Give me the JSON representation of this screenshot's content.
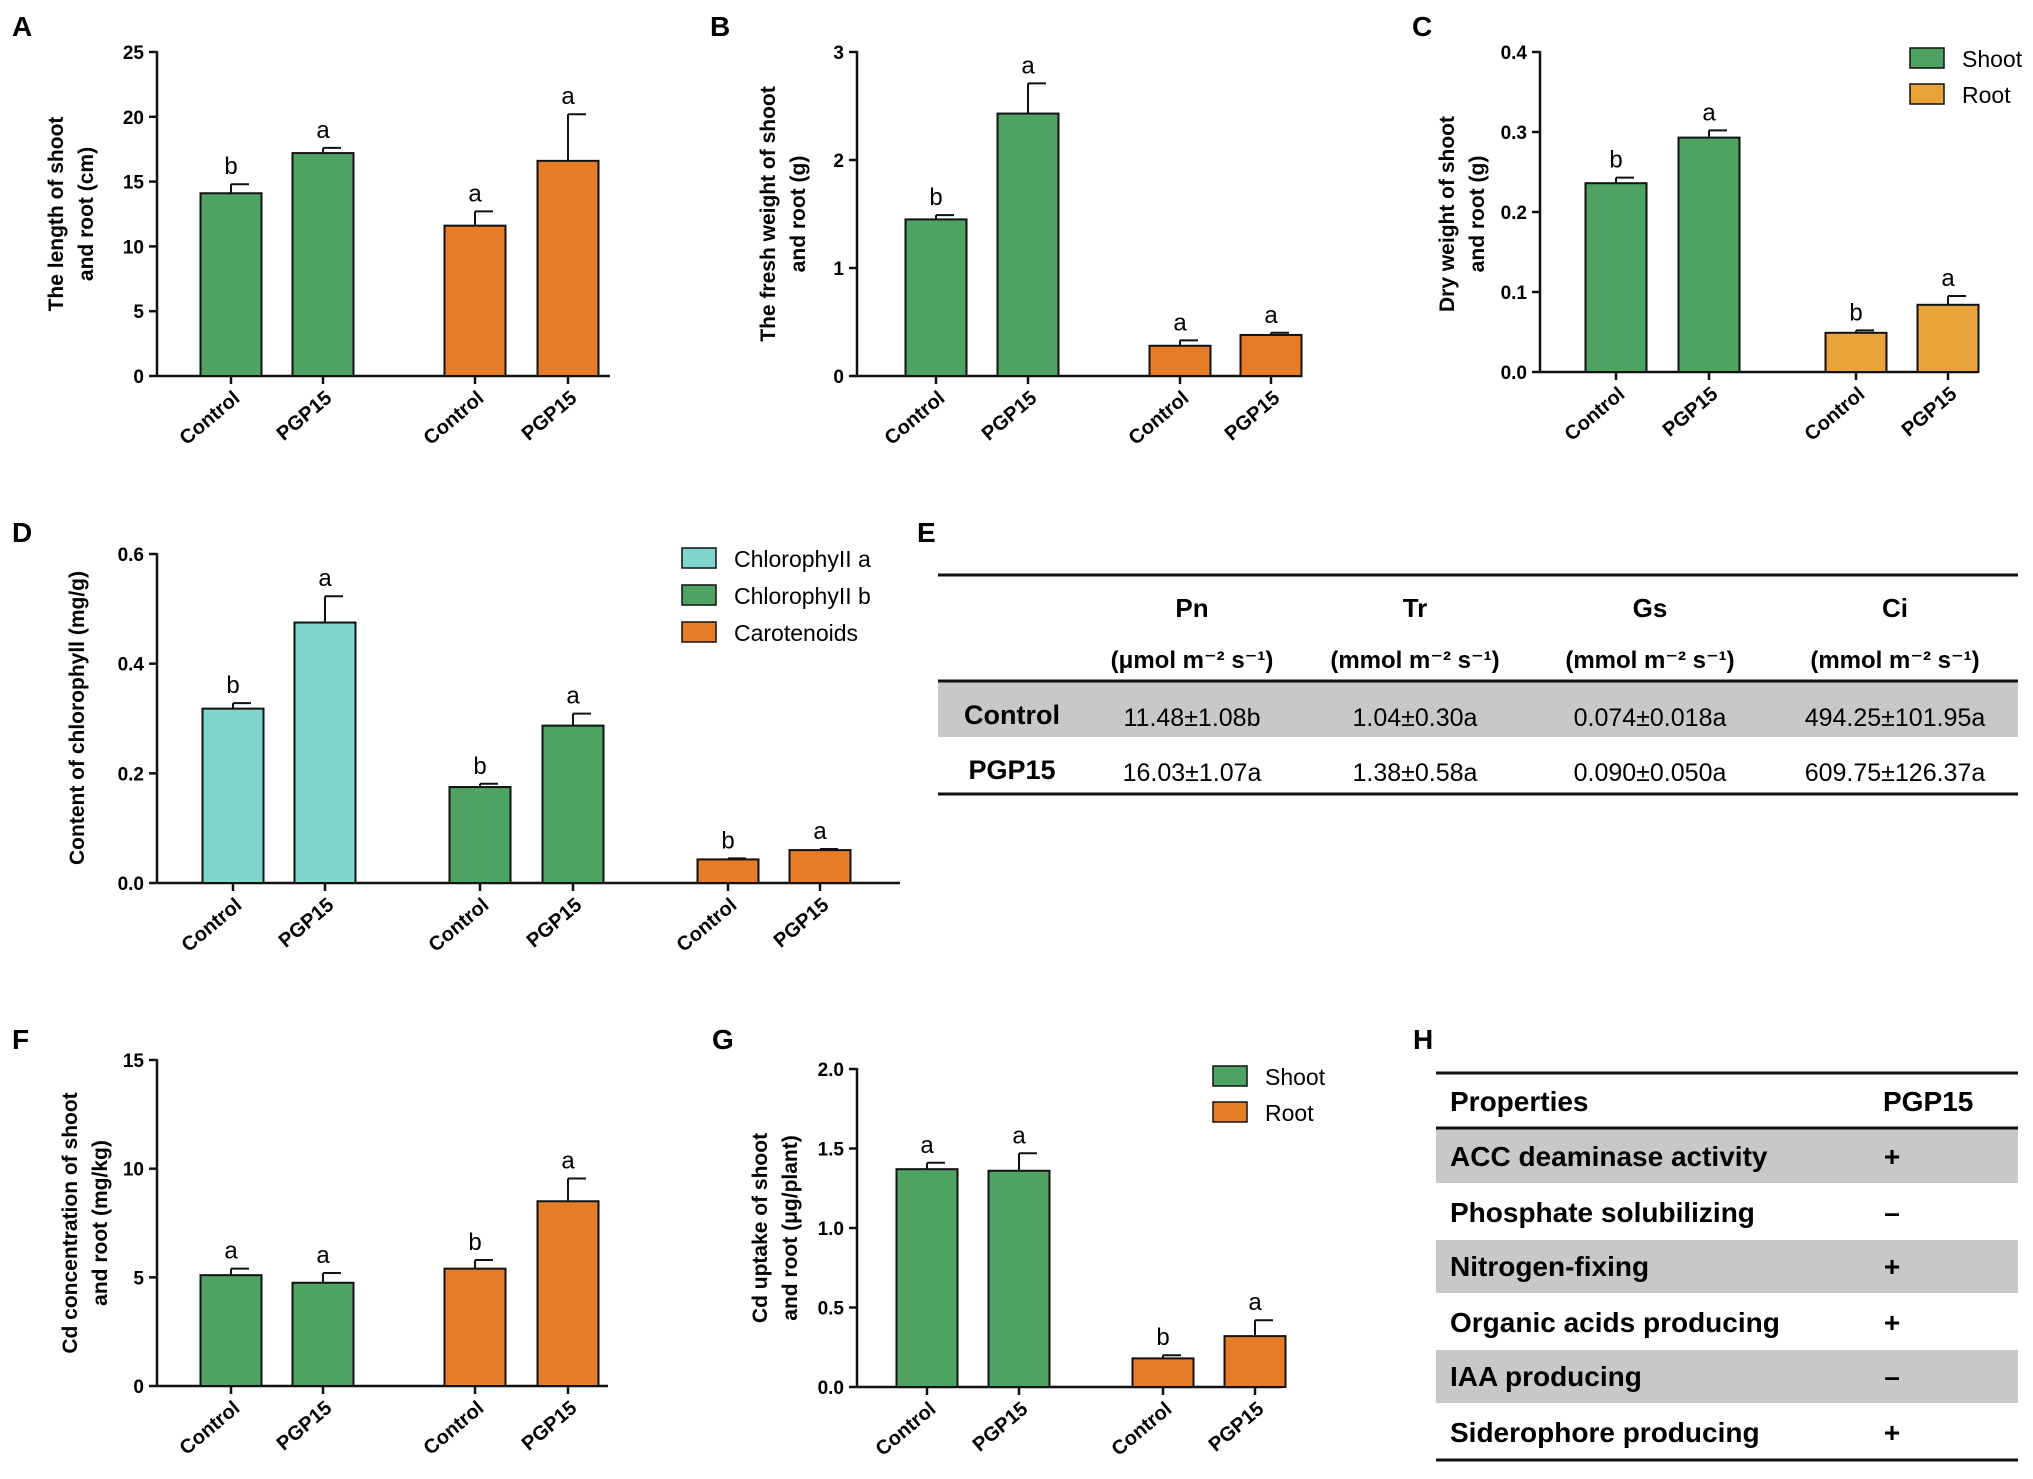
{
  "colors": {
    "shoot": "#4ea362",
    "root": "#e67d26",
    "root_light": "#e8a43a",
    "chl_a": "#7ed6cc",
    "chl_b": "#4ea362",
    "carot": "#e67d26",
    "row_shade": "#c8c8c8"
  },
  "chart_data": [
    {
      "id": "A",
      "letter": "A",
      "type": "bar",
      "ylabel": [
        "The length of shoot",
        "and root (cm)"
      ],
      "ylim": [
        0,
        25
      ],
      "ticks": [
        0,
        5,
        10,
        15,
        20,
        25
      ],
      "tick_labels": [
        "0",
        "5",
        "10",
        "15",
        "20",
        "25"
      ],
      "categories": [
        "Control",
        "PGP15",
        "Control",
        "PGP15"
      ],
      "groups": [
        {
          "series": "Shoot",
          "color_key": "shoot",
          "values": [
            14.1,
            17.2
          ],
          "errors": [
            0.7,
            0.4
          ],
          "letters": [
            "b",
            "a"
          ]
        },
        {
          "series": "Root",
          "color_key": "root",
          "values": [
            11.6,
            16.6
          ],
          "errors": [
            1.1,
            3.6
          ],
          "letters": [
            "a",
            "a"
          ]
        }
      ]
    },
    {
      "id": "B",
      "letter": "B",
      "type": "bar",
      "ylabel": [
        "The fresh weight of shoot",
        "and root (g)"
      ],
      "ylim": [
        0,
        3
      ],
      "ticks": [
        0,
        1,
        2,
        3
      ],
      "tick_labels": [
        "0",
        "1",
        "2",
        "3"
      ],
      "categories": [
        "Control",
        "PGP15",
        "Control",
        "PGP15"
      ],
      "groups": [
        {
          "series": "Shoot",
          "color_key": "shoot",
          "values": [
            1.45,
            2.43
          ],
          "errors": [
            0.04,
            0.28
          ],
          "letters": [
            "b",
            "a"
          ]
        },
        {
          "series": "Root",
          "color_key": "root",
          "values": [
            0.28,
            0.38
          ],
          "errors": [
            0.05,
            0.02
          ],
          "letters": [
            "a",
            "a"
          ]
        }
      ]
    },
    {
      "id": "C",
      "letter": "C",
      "type": "bar",
      "ylabel": [
        "Dry weight of shoot",
        "and root (g)"
      ],
      "ylim": [
        0,
        0.4
      ],
      "ticks": [
        0,
        0.1,
        0.2,
        0.3,
        0.4
      ],
      "tick_labels": [
        "0.0",
        "0.1",
        "0.2",
        "0.3",
        "0.4"
      ],
      "categories": [
        "Control",
        "PGP15",
        "Control",
        "PGP15"
      ],
      "groups": [
        {
          "series": "Shoot",
          "color_key": "shoot",
          "values": [
            0.236,
            0.293
          ],
          "errors": [
            0.007,
            0.009
          ],
          "letters": [
            "b",
            "a"
          ]
        },
        {
          "series": "Root",
          "color_key": "root_light",
          "values": [
            0.049,
            0.084
          ],
          "errors": [
            0.003,
            0.011
          ],
          "letters": [
            "b",
            "a"
          ]
        }
      ],
      "legend": [
        {
          "label": "Shoot",
          "color_key": "shoot"
        },
        {
          "label": "Root",
          "color_key": "root_light"
        }
      ]
    },
    {
      "id": "D",
      "letter": "D",
      "type": "bar",
      "ylabel": [
        "Content of chlorophyll (mg/g)"
      ],
      "ylim": [
        0,
        0.6
      ],
      "ticks": [
        0,
        0.2,
        0.4,
        0.6
      ],
      "tick_labels": [
        "0.0",
        "0.2",
        "0.4",
        "0.6"
      ],
      "categories": [
        "Control",
        "PGP15",
        "Control",
        "PGP15",
        "Control",
        "PGP15"
      ],
      "groups": [
        {
          "series": "Chlorophyll a",
          "color_key": "chl_a",
          "values": [
            0.318,
            0.475
          ],
          "errors": [
            0.01,
            0.048
          ],
          "letters": [
            "b",
            "a"
          ]
        },
        {
          "series": "Chlorophyll b",
          "color_key": "chl_b",
          "values": [
            0.175,
            0.287
          ],
          "errors": [
            0.006,
            0.022
          ],
          "letters": [
            "b",
            "a"
          ]
        },
        {
          "series": "Carotenoids",
          "color_key": "carot",
          "values": [
            0.043,
            0.06
          ],
          "errors": [
            0.002,
            0.002
          ],
          "letters": [
            "b",
            "a"
          ]
        }
      ],
      "legend": [
        {
          "label": "ChlorophyII a",
          "color_key": "chl_a"
        },
        {
          "label": "ChlorophyII b",
          "color_key": "chl_b"
        },
        {
          "label": "Carotenoids",
          "color_key": "carot"
        }
      ]
    },
    {
      "id": "F",
      "letter": "F",
      "type": "bar",
      "ylabel": [
        "Cd concentration of shoot",
        "and root (mg/kg)"
      ],
      "ylim": [
        0,
        15
      ],
      "ticks": [
        0,
        5,
        10,
        15
      ],
      "tick_labels": [
        "0",
        "5",
        "10",
        "15"
      ],
      "categories": [
        "Control",
        "PGP15",
        "Control",
        "PGP15"
      ],
      "groups": [
        {
          "series": "Shoot",
          "color_key": "shoot",
          "values": [
            5.1,
            4.75
          ],
          "errors": [
            0.3,
            0.45
          ],
          "letters": [
            "a",
            "a"
          ]
        },
        {
          "series": "Root",
          "color_key": "root",
          "values": [
            5.4,
            8.5
          ],
          "errors": [
            0.4,
            1.05
          ],
          "letters": [
            "b",
            "a"
          ]
        }
      ]
    },
    {
      "id": "G",
      "letter": "G",
      "type": "bar",
      "ylabel": [
        "Cd uptake of shoot",
        "and root (μg/plant)"
      ],
      "ylim": [
        0,
        2
      ],
      "ticks": [
        0,
        0.5,
        1,
        1.5,
        2
      ],
      "tick_labels": [
        "0.0",
        "0.5",
        "1.0",
        "1.5",
        "2.0"
      ],
      "categories": [
        "Control",
        "PGP15",
        "Control",
        "PGP15"
      ],
      "groups": [
        {
          "series": "Shoot",
          "color_key": "shoot",
          "values": [
            1.37,
            1.36
          ],
          "errors": [
            0.04,
            0.11
          ],
          "letters": [
            "a",
            "a"
          ]
        },
        {
          "series": "Root",
          "color_key": "root",
          "values": [
            0.18,
            0.32
          ],
          "errors": [
            0.02,
            0.1
          ],
          "letters": [
            "b",
            "a"
          ]
        }
      ],
      "legend": [
        {
          "label": "Shoot",
          "color_key": "shoot"
        },
        {
          "label": "Root",
          "color_key": "root"
        }
      ]
    }
  ],
  "table_e": {
    "letter": "E",
    "headers": [
      {
        "name": "Pn",
        "unit": "(μmol m⁻² s⁻¹)"
      },
      {
        "name": "Tr",
        "unit": "(mmol m⁻² s⁻¹)"
      },
      {
        "name": "Gs",
        "unit": "(mmol m⁻² s⁻¹)"
      },
      {
        "name": "Ci",
        "unit": "(mmol m⁻² s⁻¹)"
      }
    ],
    "rows": [
      {
        "label": "Control",
        "values": [
          "11.48±1.08b",
          "1.04±0.30a",
          "0.074±0.018a",
          "494.25±101.95a"
        ]
      },
      {
        "label": "PGP15",
        "values": [
          "16.03±1.07a",
          "1.38±0.58a",
          "0.090±0.050a",
          "609.75±126.37a"
        ]
      }
    ]
  },
  "table_h": {
    "letter": "H",
    "header": [
      "Properties",
      "PGP15"
    ],
    "rows": [
      [
        "ACC deaminase activity",
        "+"
      ],
      [
        "Phosphate solubilizing",
        "–"
      ],
      [
        "Nitrogen-fixing",
        "+"
      ],
      [
        "Organic acids producing",
        "+"
      ],
      [
        "IAA producing",
        "–"
      ],
      [
        "Siderophore producing",
        "+"
      ]
    ]
  }
}
